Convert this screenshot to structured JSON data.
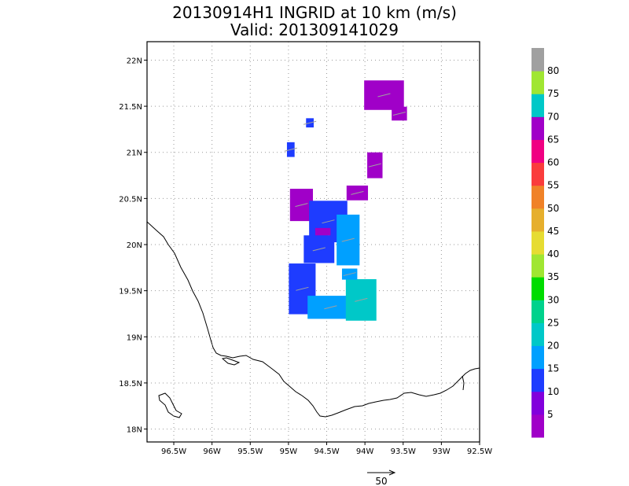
{
  "chart_data": {
    "type": "map",
    "title": "20130914H1 INGRID at 10 km (m/s)",
    "subtitle": "Valid: 201309141029",
    "lon_range": [
      -96.85,
      -92.5
    ],
    "lat_range": [
      17.86,
      22.2
    ],
    "x_ticks": [
      {
        "value": -96.5,
        "label": "96.5W"
      },
      {
        "value": -96,
        "label": "96W"
      },
      {
        "value": -95.5,
        "label": "95.5W"
      },
      {
        "value": -95,
        "label": "95W"
      },
      {
        "value": -94.5,
        "label": "94.5W"
      },
      {
        "value": -94,
        "label": "94W"
      },
      {
        "value": -93.5,
        "label": "93.5W"
      },
      {
        "value": -93,
        "label": "93W"
      },
      {
        "value": -92.5,
        "label": "92.5W"
      }
    ],
    "y_ticks": [
      {
        "value": 18,
        "label": "18N"
      },
      {
        "value": 18.5,
        "label": "18.5N"
      },
      {
        "value": 19,
        "label": "19N"
      },
      {
        "value": 19.5,
        "label": "19.5N"
      },
      {
        "value": 20,
        "label": "20N"
      },
      {
        "value": 20.5,
        "label": "20.5N"
      },
      {
        "value": 21,
        "label": "21N"
      },
      {
        "value": 21.5,
        "label": "21.5N"
      },
      {
        "value": 22,
        "label": "22N"
      }
    ],
    "grid": true,
    "colorbar": {
      "labels": [
        "5",
        "10",
        "15",
        "20",
        "25",
        "30",
        "35",
        "40",
        "45",
        "50",
        "55",
        "60",
        "65",
        "70",
        "75",
        "80"
      ],
      "colors": [
        "#a000c8",
        "#8200dc",
        "#1e3cff",
        "#00a0ff",
        "#00c8c8",
        "#00d28c",
        "#00dc00",
        "#a0e632",
        "#e6dc32",
        "#e6af2d",
        "#f08228",
        "#fa3c3c",
        "#f00082",
        "#a000c8",
        "#00c8c8",
        "#a0e632",
        "#a0a0a0"
      ],
      "placement": "right"
    },
    "vector_scale": {
      "label": "50"
    },
    "wind_patches": [
      {
        "lon": -93.75,
        "lat": 21.62,
        "w": 0.52,
        "h": 0.32,
        "color": "#a000c8"
      },
      {
        "lon": -93.55,
        "lat": 21.42,
        "w": 0.2,
        "h": 0.15,
        "color": "#a000c8"
      },
      {
        "lon": -94.72,
        "lat": 21.32,
        "w": 0.1,
        "h": 0.1,
        "color": "#1e3cff"
      },
      {
        "lon": -94.97,
        "lat": 21.03,
        "w": 0.1,
        "h": 0.16,
        "color": "#1e3cff"
      },
      {
        "lon": -93.87,
        "lat": 20.86,
        "w": 0.2,
        "h": 0.28,
        "color": "#a000c8"
      },
      {
        "lon": -94.1,
        "lat": 20.56,
        "w": 0.28,
        "h": 0.16,
        "color": "#a000c8"
      },
      {
        "lon": -94.83,
        "lat": 20.43,
        "w": 0.3,
        "h": 0.35,
        "color": "#a000c8"
      },
      {
        "lon": -94.48,
        "lat": 20.25,
        "w": 0.5,
        "h": 0.45,
        "color": "#1e3cff"
      },
      {
        "lon": -94.22,
        "lat": 20.05,
        "w": 0.3,
        "h": 0.55,
        "color": "#00a0ff"
      },
      {
        "lon": -94.55,
        "lat": 20.08,
        "w": 0.2,
        "h": 0.2,
        "color": "#a000c8"
      },
      {
        "lon": -94.6,
        "lat": 19.95,
        "w": 0.4,
        "h": 0.3,
        "color": "#1e3cff"
      },
      {
        "lon": -94.82,
        "lat": 19.52,
        "w": 0.35,
        "h": 0.55,
        "color": "#1e3cff"
      },
      {
        "lon": -94.45,
        "lat": 19.32,
        "w": 0.6,
        "h": 0.25,
        "color": "#00a0ff"
      },
      {
        "lon": -94.05,
        "lat": 19.4,
        "w": 0.4,
        "h": 0.45,
        "color": "#00c8c8"
      },
      {
        "lon": -94.2,
        "lat": 19.68,
        "w": 0.2,
        "h": 0.12,
        "color": "#00a0ff"
      }
    ]
  }
}
